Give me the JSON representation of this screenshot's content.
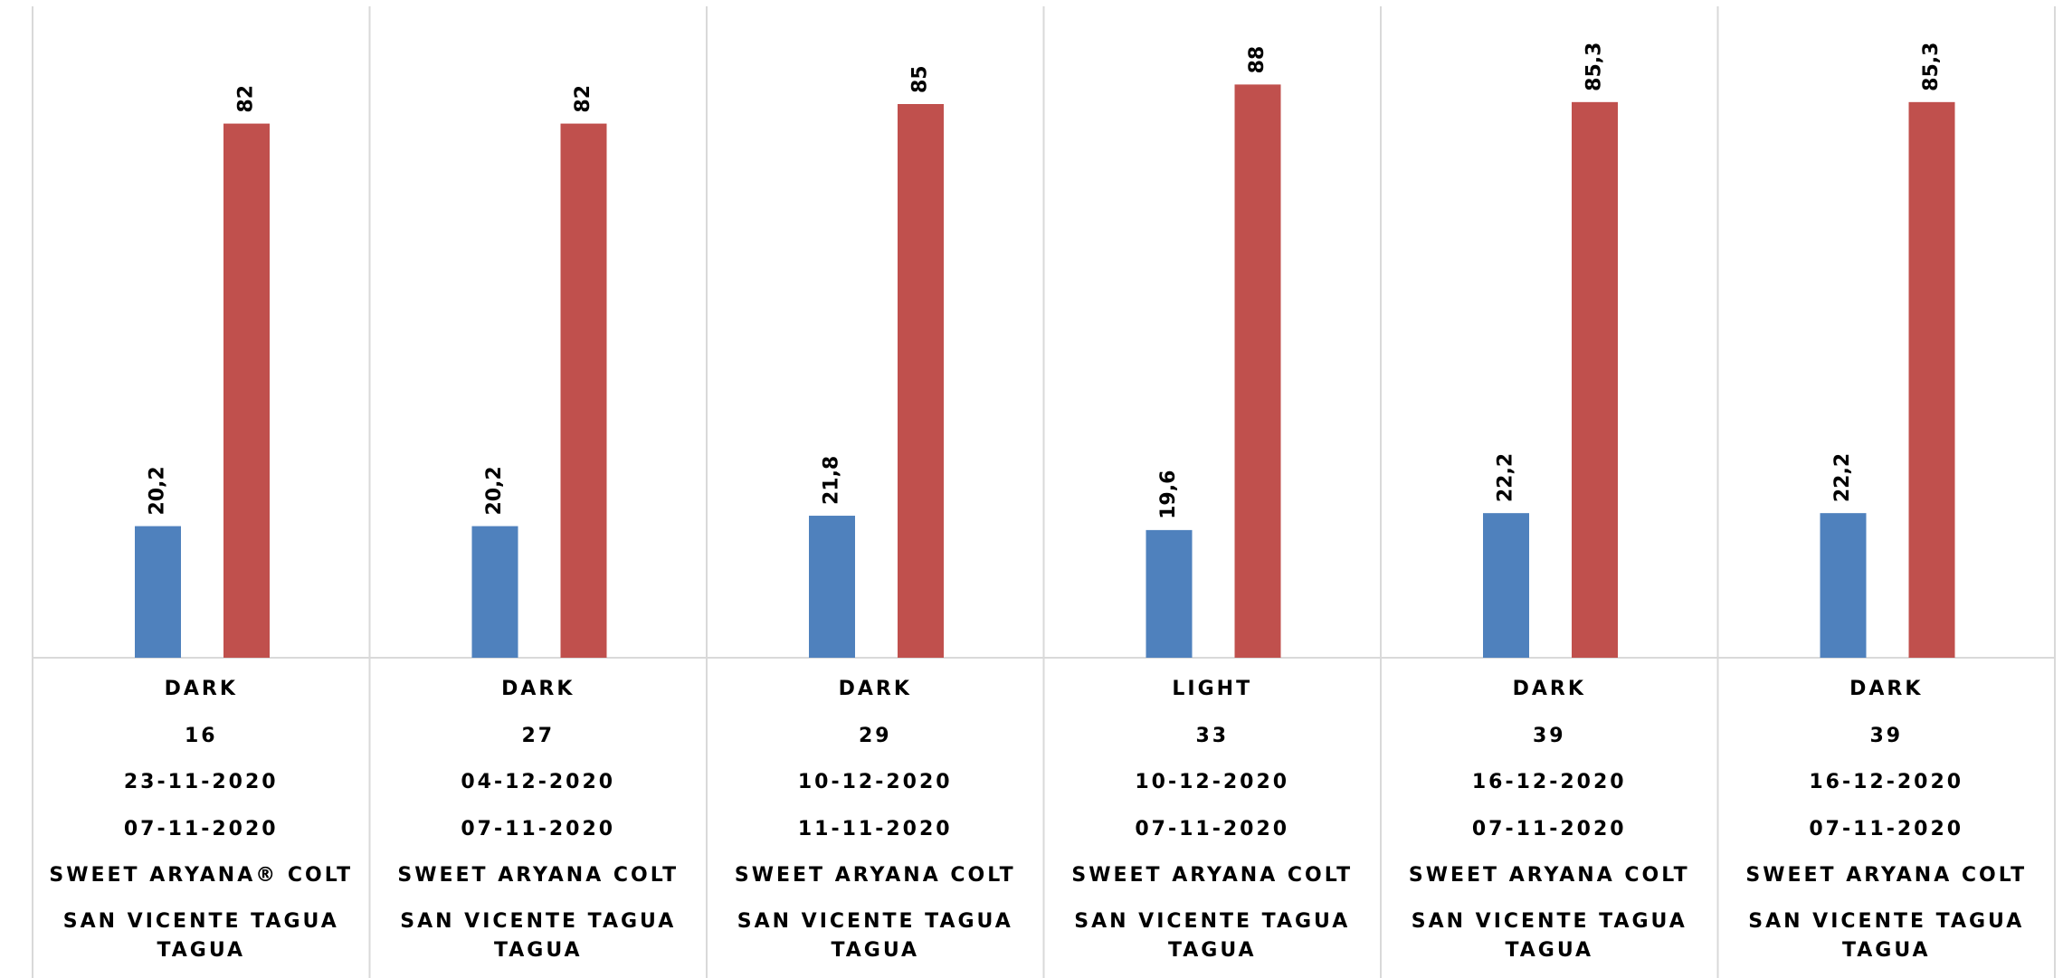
{
  "chart_data": {
    "type": "bar",
    "categories": [
      [
        "DARK",
        "16",
        "23-11-2020",
        "07-11-2020",
        "SWEET ARYANA® COLT",
        "SAN VICENTE TAGUA TAGUA"
      ],
      [
        "DARK",
        "27",
        "04-12-2020",
        "07-11-2020",
        "SWEET ARYANA COLT",
        "SAN VICENTE TAGUA TAGUA"
      ],
      [
        "DARK",
        "29",
        "10-12-2020",
        "11-11-2020",
        "SWEET ARYANA COLT",
        "SAN VICENTE TAGUA TAGUA"
      ],
      [
        "LIGHT",
        "33",
        "10-12-2020",
        "07-11-2020",
        "SWEET ARYANA COLT",
        "SAN VICENTE TAGUA TAGUA"
      ],
      [
        "DARK",
        "39",
        "16-12-2020",
        "07-11-2020",
        "SWEET ARYANA COLT",
        "SAN VICENTE TAGUA TAGUA"
      ],
      [
        "DARK",
        "39",
        "16-12-2020",
        "07-11-2020",
        "SWEET ARYANA COLT",
        "SAN VICENTE TAGUA TAGUA"
      ]
    ],
    "series": [
      {
        "color": "#4f81bd",
        "values": [
          20.2,
          20.2,
          21.8,
          19.6,
          22.2,
          22.2
        ],
        "value_labels": [
          "20,2",
          "20,2",
          "21,8",
          "19,6",
          "22,2",
          "22,2"
        ]
      },
      {
        "color": "#c0504d",
        "values": [
          82,
          82,
          85,
          88,
          85.3,
          85.3
        ],
        "value_labels": [
          "82",
          "82",
          "85",
          "88",
          "85,3",
          "85,3"
        ]
      }
    ],
    "ylim": [
      0,
      100
    ]
  }
}
